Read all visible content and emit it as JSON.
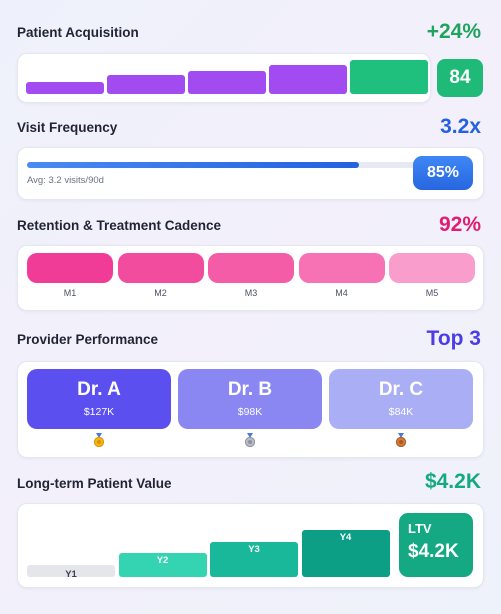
{
  "colors": {
    "green": "#1fa35f",
    "blue": "#2461e0",
    "pink": "#e01d72",
    "indigo": "#4b3de6",
    "teal": "#14a883"
  },
  "acquisition": {
    "title": "Patient Acquisition",
    "metric": "+24%",
    "badge": "84",
    "bars": [
      {
        "level": 0.35,
        "color": "#a24bf0"
      },
      {
        "level": 0.55,
        "color": "#a24bf0"
      },
      {
        "level": 0.68,
        "color": "#a24bf0"
      },
      {
        "level": 0.85,
        "color": "#a24bf0"
      },
      {
        "level": 1.0,
        "color": "#1fbf7d"
      }
    ]
  },
  "frequency": {
    "title": "Visit Frequency",
    "metric": "3.2x",
    "progress": 0.85,
    "avg_text": "Avg: 3.2 visits/90d",
    "badge": "85%"
  },
  "retention": {
    "title": "Retention & Treatment Cadence",
    "metric": "92%",
    "months": [
      {
        "label": "M1",
        "color": "#f03c96"
      },
      {
        "label": "M2",
        "color": "#f24c9f"
      },
      {
        "label": "M3",
        "color": "#f45ca8"
      },
      {
        "label": "M4",
        "color": "#f772b5"
      },
      {
        "label": "M5",
        "color": "#f99dcc"
      }
    ]
  },
  "providers": {
    "title": "Provider Performance",
    "metric": "Top 3",
    "items": [
      {
        "name": "Dr. A",
        "value": "$127K",
        "medal": "gold-medal-icon",
        "color": "#5b4ff0"
      },
      {
        "name": "Dr. B",
        "value": "$98K",
        "medal": "silver-medal-icon",
        "color": "#8a87f2"
      },
      {
        "name": "Dr. C",
        "value": "$84K",
        "medal": "bronze-medal-icon",
        "color": "#a9aef5"
      }
    ]
  },
  "lifetime": {
    "title": "Long-term Patient Value",
    "metric": "$4.2K",
    "years": [
      {
        "label": "Y1",
        "level": 0.25,
        "color": "#e4e6ec"
      },
      {
        "label": "Y2",
        "level": 0.5,
        "color": "#34d3b1"
      },
      {
        "label": "Y3",
        "level": 0.75,
        "color": "#19b89a"
      },
      {
        "label": "Y4",
        "level": 1.0,
        "color": "#0d9f86"
      }
    ],
    "ltv_label": "LTV",
    "ltv_value": "$4.2K"
  }
}
